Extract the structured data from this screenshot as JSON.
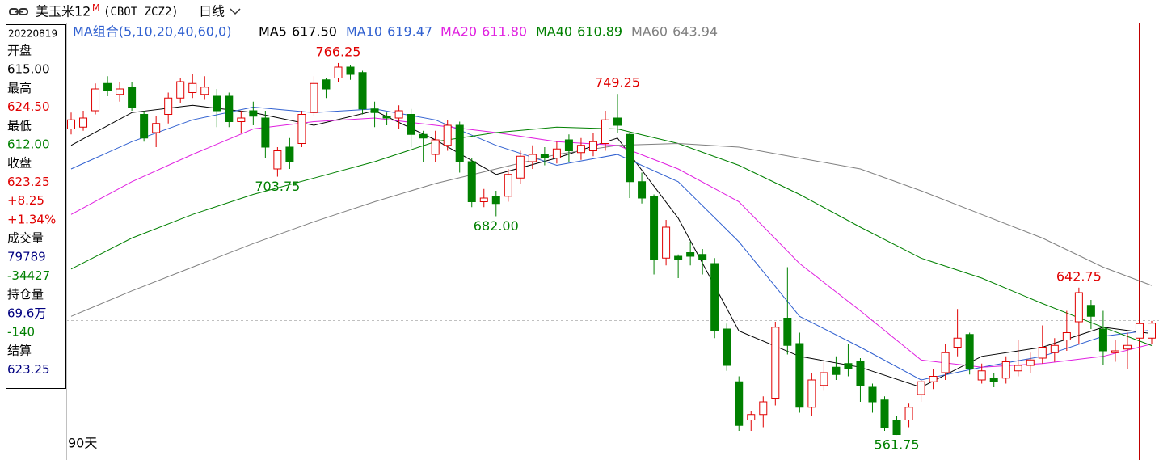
{
  "header": {
    "title": "美玉米12",
    "superscript": "M",
    "code": "(CBOT ZCZ2)",
    "period": "日线"
  },
  "info_panel": {
    "date": "20220819",
    "rows": [
      {
        "text": "开盘",
        "color": "#000000"
      },
      {
        "text": "615.00",
        "color": "#000000"
      },
      {
        "text": "最高",
        "color": "#000000"
      },
      {
        "text": "624.50",
        "color": "#e00000"
      },
      {
        "text": "最低",
        "color": "#000000"
      },
      {
        "text": "612.00",
        "color": "#008000"
      },
      {
        "text": "收盘",
        "color": "#000000"
      },
      {
        "text": "623.25",
        "color": "#e00000"
      },
      {
        "text": "+8.25",
        "color": "#e00000"
      },
      {
        "text": "+1.34%",
        "color": "#e00000"
      },
      {
        "text": "成交量",
        "color": "#000000"
      },
      {
        "text": "79789",
        "color": "#000080"
      },
      {
        "text": "-34427",
        "color": "#008000"
      },
      {
        "text": "持仓量",
        "color": "#000000"
      },
      {
        "text": "69.6万",
        "color": "#000080"
      },
      {
        "text": "-140",
        "color": "#008000"
      },
      {
        "text": "结算",
        "color": "#000000"
      },
      {
        "text": "623.25",
        "color": "#000080"
      }
    ]
  },
  "footer": {
    "range": "90天"
  },
  "chart_data": {
    "type": "candlestick",
    "ylim": [
      556,
      788
    ],
    "up_color": "#e00000",
    "down_color": "#008000",
    "legend_title": "MA组合(5,10,20,40,60,0)",
    "legend_title_color": "#3060d0",
    "open": [
      730,
      731,
      740,
      755,
      749,
      753,
      738,
      728,
      738,
      747,
      750,
      749,
      748,
      748,
      734,
      740,
      736,
      708,
      720,
      722,
      739,
      757,
      758,
      764,
      761,
      741,
      737,
      736,
      738,
      727,
      716,
      721,
      732,
      712,
      690,
      693,
      693,
      703,
      712,
      716,
      714,
      724,
      717,
      718,
      722,
      736,
      727,
      701,
      693,
      659,
      660,
      662,
      661,
      656,
      620,
      591,
      570,
      573,
      582,
      626,
      612,
      577,
      589,
      599,
      601,
      602,
      588,
      581,
      570,
      570,
      584,
      591,
      596,
      610,
      617,
      592,
      593,
      593,
      597,
      600,
      604,
      607,
      614,
      624,
      633,
      620,
      607,
      609,
      615,
      615
    ],
    "high": [
      739,
      740,
      755,
      759,
      756,
      756,
      740,
      737,
      750,
      758,
      760,
      759,
      752,
      750,
      740,
      745,
      740,
      720,
      725,
      740,
      759,
      758,
      766.25,
      765,
      762,
      745,
      739,
      743,
      741,
      729,
      729,
      735,
      734,
      714,
      697,
      696,
      708,
      718,
      721,
      720,
      723,
      727,
      725,
      728,
      740,
      749.25,
      728,
      706,
      694,
      680,
      661,
      668,
      664,
      659,
      623,
      594,
      575,
      583,
      624,
      654,
      618,
      596,
      602,
      605,
      612,
      604,
      590,
      583,
      572,
      579,
      593,
      598,
      612,
      631,
      618,
      601,
      596,
      605,
      614,
      607,
      622,
      615,
      630,
      642.75,
      636,
      630,
      614,
      618,
      624,
      624.5
    ],
    "low": [
      727,
      729,
      738,
      748,
      745,
      740,
      723,
      720,
      733,
      744,
      747,
      746,
      731,
      731,
      728,
      732,
      714,
      703.75,
      708,
      720,
      737,
      747,
      756,
      757,
      738,
      731,
      732,
      730,
      720,
      712,
      712,
      718,
      706,
      687,
      687,
      682,
      690,
      700,
      708,
      710,
      711,
      712,
      713,
      715,
      718,
      728,
      692,
      689,
      650,
      655,
      648,
      655,
      650,
      615,
      597,
      564,
      564,
      566,
      578,
      606,
      574,
      572,
      586,
      592,
      594,
      580,
      574,
      564,
      561.75,
      566,
      580,
      587,
      592,
      605,
      595,
      590,
      588,
      590,
      594,
      596,
      601,
      602,
      608,
      612,
      620,
      600,
      602,
      598,
      607,
      612
    ],
    "close": [
      735,
      736,
      752,
      751,
      752,
      742,
      725,
      733,
      747,
      756,
      755,
      753,
      740,
      734,
      736,
      737,
      720,
      718,
      712,
      738,
      755,
      752,
      764,
      760,
      741,
      739,
      736,
      740,
      727,
      725,
      724,
      732,
      712,
      690,
      692,
      689,
      705,
      715,
      716,
      714,
      719,
      718,
      721,
      723,
      735,
      732,
      701,
      692,
      658,
      676,
      658,
      660,
      658,
      619,
      600,
      567,
      573,
      580,
      621,
      611,
      577,
      592,
      596,
      595,
      598,
      589,
      580,
      566,
      562,
      577,
      591,
      594,
      607,
      615,
      598,
      597,
      591,
      602,
      600,
      603,
      610,
      611,
      618,
      640,
      627,
      608,
      608,
      611,
      623,
      623.25
    ],
    "high_labels": [
      null,
      null,
      null,
      null,
      null,
      null,
      null,
      null,
      null,
      null,
      null,
      null,
      null,
      null,
      null,
      null,
      null,
      null,
      null,
      null,
      null,
      null,
      "766.25",
      null,
      null,
      null,
      null,
      null,
      null,
      null,
      null,
      null,
      null,
      null,
      null,
      null,
      null,
      null,
      null,
      null,
      null,
      null,
      null,
      null,
      null,
      "749.25",
      null,
      null,
      null,
      null,
      null,
      null,
      null,
      null,
      null,
      null,
      null,
      null,
      null,
      null,
      null,
      null,
      null,
      null,
      null,
      null,
      null,
      null,
      null,
      null,
      null,
      null,
      null,
      null,
      null,
      null,
      null,
      null,
      null,
      null,
      null,
      null,
      null,
      "642.75",
      null,
      null,
      null,
      null,
      null,
      null
    ],
    "low_labels": [
      null,
      null,
      null,
      null,
      null,
      null,
      null,
      null,
      null,
      null,
      null,
      null,
      null,
      null,
      null,
      null,
      null,
      "703.75",
      null,
      null,
      null,
      null,
      null,
      null,
      null,
      null,
      null,
      null,
      null,
      null,
      null,
      null,
      null,
      null,
      null,
      "682.00",
      null,
      null,
      null,
      null,
      null,
      null,
      null,
      null,
      null,
      null,
      null,
      null,
      null,
      null,
      null,
      null,
      null,
      null,
      null,
      null,
      null,
      null,
      null,
      null,
      null,
      null,
      null,
      null,
      null,
      null,
      null,
      null,
      "561.75",
      null,
      null,
      null,
      null,
      null,
      null,
      null,
      null,
      null,
      null,
      null,
      null,
      null,
      null,
      null,
      null,
      null,
      null,
      null,
      null,
      null
    ],
    "series": [
      {
        "name": "MA5",
        "color": "#000000",
        "x": [
          0,
          5,
          10,
          15,
          20,
          25,
          30,
          35,
          40,
          45,
          50,
          55,
          60,
          65,
          70,
          75,
          80,
          85,
          89
        ],
        "values": [
          721,
          739,
          743,
          739,
          732,
          740,
          724,
          705,
          714,
          725,
          681,
          619,
          605,
          599,
          588,
          605,
          610,
          621,
          617.5
        ],
        "value_labels": [
          null,
          null,
          null,
          null,
          null,
          null,
          null,
          null,
          null,
          null,
          null,
          null,
          null,
          null,
          null,
          null,
          null,
          null,
          "617.50"
        ]
      },
      {
        "name": "MA10",
        "color": "#3060d0",
        "x": [
          0,
          5,
          10,
          15,
          20,
          25,
          30,
          35,
          40,
          45,
          50,
          55,
          60,
          65,
          70,
          75,
          80,
          85,
          89
        ],
        "values": [
          708,
          723,
          735,
          742,
          739,
          741,
          735,
          721,
          710,
          716,
          701,
          668,
          627,
          610,
          592,
          599,
          605,
          616,
          619.47
        ],
        "value_labels": [
          null,
          null,
          null,
          null,
          null,
          null,
          null,
          null,
          null,
          null,
          null,
          null,
          null,
          null,
          null,
          null,
          null,
          null,
          "619.47"
        ]
      },
      {
        "name": "MA20",
        "color": "#e020e0",
        "x": [
          0,
          5,
          10,
          15,
          20,
          25,
          30,
          35,
          40,
          45,
          50,
          55,
          60,
          65,
          70,
          75,
          80,
          85,
          89
        ],
        "values": [
          683,
          701,
          716,
          730,
          734,
          736,
          732,
          728,
          723,
          721,
          708,
          690,
          656,
          630,
          603,
          599,
          601,
          605,
          611.8
        ],
        "value_labels": [
          null,
          null,
          null,
          null,
          null,
          null,
          null,
          null,
          null,
          null,
          null,
          null,
          null,
          null,
          null,
          null,
          null,
          null,
          "611.80"
        ]
      },
      {
        "name": "MA40",
        "color": "#008000",
        "x": [
          0,
          5,
          10,
          15,
          20,
          25,
          30,
          35,
          40,
          45,
          50,
          55,
          60,
          65,
          70,
          75,
          80,
          85,
          89
        ],
        "values": [
          653,
          670,
          683,
          694,
          703,
          712,
          723,
          728,
          731,
          730,
          722,
          710,
          694,
          676,
          659,
          648,
          634,
          621,
          610.89
        ],
        "value_labels": [
          null,
          null,
          null,
          null,
          null,
          null,
          null,
          null,
          null,
          null,
          null,
          null,
          null,
          null,
          null,
          null,
          null,
          null,
          "610.89"
        ]
      },
      {
        "name": "MA60",
        "color": "#808080",
        "x": [
          0,
          5,
          10,
          15,
          20,
          25,
          30,
          35,
          40,
          45,
          50,
          55,
          60,
          65,
          70,
          75,
          80,
          85,
          89
        ],
        "values": [
          627,
          641,
          654,
          667,
          679,
          690,
          700,
          708,
          716,
          721,
          722,
          720,
          714,
          708,
          696,
          683,
          670,
          654,
          643.94
        ],
        "value_labels": [
          null,
          null,
          null,
          null,
          null,
          null,
          null,
          null,
          null,
          null,
          null,
          null,
          null,
          null,
          null,
          null,
          null,
          null,
          "643.94"
        ]
      }
    ]
  }
}
